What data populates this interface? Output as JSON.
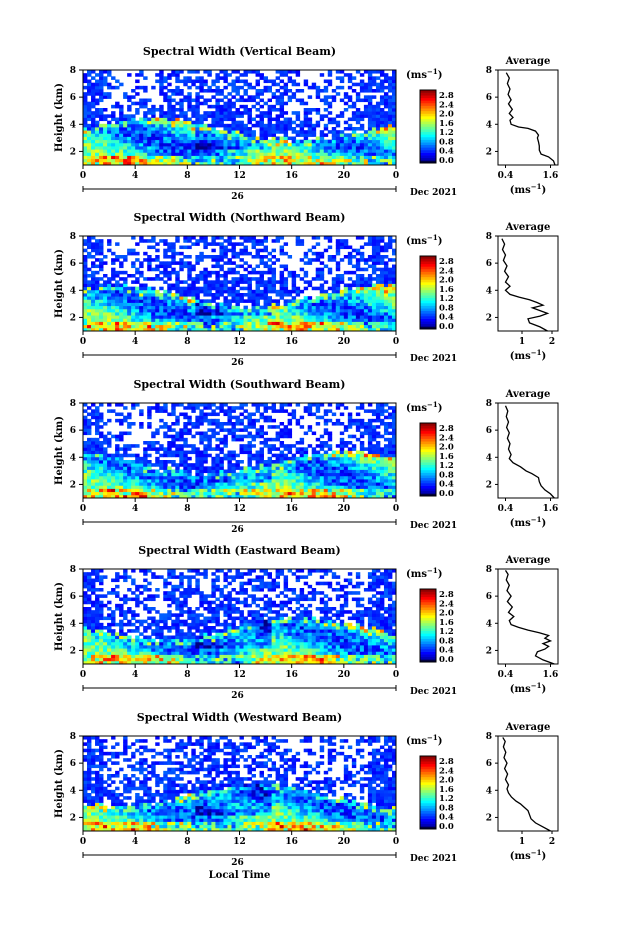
{
  "figure": {
    "xlabel": "Local Time"
  },
  "chart_data": [
    {
      "type": "heatmap",
      "title": "Spectral Width (Vertical Beam)",
      "ylabel": "Height (km)",
      "x_ticks": [
        "0",
        "4",
        "8",
        "12",
        "16",
        "20",
        "0"
      ],
      "xlim": [
        0,
        24
      ],
      "ylim": [
        1,
        8
      ],
      "y_ticks": [
        "2",
        "4",
        "6",
        "8"
      ],
      "date_day": "26",
      "date_month_year": "Dec 2021",
      "colorbar": {
        "label": "(ms",
        "label_exp": "−1",
        "label_end": ")",
        "ticks": [
          "0.0",
          "0.4",
          "0.8",
          "1.2",
          "1.6",
          "2.0",
          "2.4",
          "2.8"
        ]
      },
      "profile": {
        "title": "Average",
        "xlabel": "(ms",
        "xlabel_exp": "−1",
        "xlabel_end": ")",
        "x_ticks": [
          "0.4",
          "1.6"
        ],
        "xlim": [
          0.2,
          1.8
        ],
        "y_ticks": [
          "2",
          "4",
          "6",
          "8"
        ],
        "points": [
          [
            1.72,
            1.0
          ],
          [
            1.68,
            1.3
          ],
          [
            1.55,
            1.6
          ],
          [
            1.35,
            1.8
          ],
          [
            1.3,
            2.1
          ],
          [
            1.3,
            2.4
          ],
          [
            1.28,
            2.7
          ],
          [
            1.25,
            3.0
          ],
          [
            1.28,
            3.2
          ],
          [
            1.2,
            3.5
          ],
          [
            1.0,
            3.7
          ],
          [
            0.75,
            3.8
          ],
          [
            0.55,
            4.0
          ],
          [
            0.52,
            4.3
          ],
          [
            0.6,
            4.5
          ],
          [
            0.5,
            4.8
          ],
          [
            0.58,
            5.1
          ],
          [
            0.48,
            5.5
          ],
          [
            0.55,
            5.8
          ],
          [
            0.47,
            6.2
          ],
          [
            0.52,
            6.6
          ],
          [
            0.45,
            7.0
          ],
          [
            0.5,
            7.4
          ],
          [
            0.42,
            7.8
          ]
        ]
      }
    },
    {
      "type": "heatmap",
      "title": "Spectral Width (Northward Beam)",
      "ylabel": "Height (km)",
      "x_ticks": [
        "0",
        "4",
        "8",
        "12",
        "16",
        "20",
        "0"
      ],
      "xlim": [
        0,
        24
      ],
      "ylim": [
        1,
        8
      ],
      "y_ticks": [
        "2",
        "4",
        "6",
        "8"
      ],
      "date_day": "26",
      "date_month_year": "Dec 2021",
      "colorbar": {
        "label": "(ms",
        "label_exp": "−1",
        "label_end": ")",
        "ticks": [
          "0.0",
          "0.4",
          "0.8",
          "1.2",
          "1.6",
          "2.0",
          "2.4",
          "2.8"
        ]
      },
      "profile": {
        "title": "Average",
        "xlabel": "(ms",
        "xlabel_exp": "−1",
        "xlabel_end": ")",
        "x_ticks": [
          "1",
          "2"
        ],
        "xlim": [
          0.2,
          2.2
        ],
        "y_ticks": [
          "2",
          "4",
          "6",
          "8"
        ],
        "points": [
          [
            1.85,
            1.0
          ],
          [
            1.6,
            1.3
          ],
          [
            1.25,
            1.6
          ],
          [
            1.2,
            1.9
          ],
          [
            1.6,
            2.1
          ],
          [
            1.85,
            2.3
          ],
          [
            1.6,
            2.5
          ],
          [
            1.35,
            2.7
          ],
          [
            1.7,
            2.9
          ],
          [
            1.5,
            3.1
          ],
          [
            1.25,
            3.3
          ],
          [
            0.9,
            3.5
          ],
          [
            0.6,
            3.7
          ],
          [
            0.45,
            4.0
          ],
          [
            0.6,
            4.3
          ],
          [
            0.45,
            4.6
          ],
          [
            0.55,
            5.0
          ],
          [
            0.42,
            5.4
          ],
          [
            0.5,
            5.8
          ],
          [
            0.38,
            6.2
          ],
          [
            0.45,
            6.6
          ],
          [
            0.35,
            7.0
          ],
          [
            0.42,
            7.4
          ],
          [
            0.33,
            7.8
          ]
        ]
      }
    },
    {
      "type": "heatmap",
      "title": "Spectral Width (Southward Beam)",
      "ylabel": "Height (km)",
      "x_ticks": [
        "0",
        "4",
        "8",
        "12",
        "16",
        "20",
        "0"
      ],
      "xlim": [
        0,
        24
      ],
      "ylim": [
        1,
        8
      ],
      "y_ticks": [
        "2",
        "4",
        "6",
        "8"
      ],
      "date_day": "26",
      "date_month_year": "Dec 2021",
      "colorbar": {
        "label": "(ms",
        "label_exp": "−1",
        "label_end": ")",
        "ticks": [
          "0.0",
          "0.4",
          "0.8",
          "1.2",
          "1.6",
          "2.0",
          "2.4",
          "2.8"
        ]
      },
      "profile": {
        "title": "Average",
        "xlabel": "(ms",
        "xlabel_exp": "−1",
        "xlabel_end": ")",
        "x_ticks": [
          "0.4",
          "1.6"
        ],
        "xlim": [
          0.2,
          1.8
        ],
        "y_ticks": [
          "2",
          "4",
          "6",
          "8"
        ],
        "points": [
          [
            1.7,
            1.0
          ],
          [
            1.6,
            1.3
          ],
          [
            1.45,
            1.6
          ],
          [
            1.35,
            1.9
          ],
          [
            1.3,
            2.2
          ],
          [
            1.28,
            2.5
          ],
          [
            1.1,
            2.8
          ],
          [
            0.95,
            3.0
          ],
          [
            0.8,
            3.3
          ],
          [
            0.6,
            3.6
          ],
          [
            0.5,
            3.9
          ],
          [
            0.55,
            4.2
          ],
          [
            0.48,
            4.6
          ],
          [
            0.52,
            5.0
          ],
          [
            0.45,
            5.4
          ],
          [
            0.5,
            5.8
          ],
          [
            0.43,
            6.2
          ],
          [
            0.48,
            6.6
          ],
          [
            0.42,
            7.0
          ],
          [
            0.46,
            7.4
          ],
          [
            0.4,
            7.8
          ]
        ]
      }
    },
    {
      "type": "heatmap",
      "title": "Spectral Width (Eastward Beam)",
      "ylabel": "Height (km)",
      "x_ticks": [
        "0",
        "4",
        "8",
        "12",
        "16",
        "20",
        "0"
      ],
      "xlim": [
        0,
        24
      ],
      "ylim": [
        1,
        8
      ],
      "y_ticks": [
        "2",
        "4",
        "6",
        "8"
      ],
      "date_day": "26",
      "date_month_year": "Dec 2021",
      "colorbar": {
        "label": "(ms",
        "label_exp": "−1",
        "label_end": ")",
        "ticks": [
          "0.0",
          "0.4",
          "0.8",
          "1.2",
          "1.6",
          "2.0",
          "2.4",
          "2.8"
        ]
      },
      "profile": {
        "title": "Average",
        "xlabel": "(ms",
        "xlabel_exp": "−1",
        "xlabel_end": ")",
        "x_ticks": [
          "0.4",
          "1.6"
        ],
        "xlim": [
          0.2,
          1.8
        ],
        "y_ticks": [
          "2",
          "4",
          "6",
          "8"
        ],
        "points": [
          [
            1.7,
            1.0
          ],
          [
            1.4,
            1.3
          ],
          [
            1.2,
            1.6
          ],
          [
            1.25,
            1.9
          ],
          [
            1.45,
            2.1
          ],
          [
            1.55,
            2.3
          ],
          [
            1.4,
            2.5
          ],
          [
            1.6,
            2.7
          ],
          [
            1.45,
            2.9
          ],
          [
            1.55,
            3.1
          ],
          [
            1.3,
            3.3
          ],
          [
            1.0,
            3.5
          ],
          [
            0.75,
            3.7
          ],
          [
            0.55,
            3.9
          ],
          [
            0.5,
            4.2
          ],
          [
            0.62,
            4.5
          ],
          [
            0.48,
            4.8
          ],
          [
            0.58,
            5.2
          ],
          [
            0.45,
            5.6
          ],
          [
            0.55,
            6.0
          ],
          [
            0.44,
            6.4
          ],
          [
            0.5,
            6.8
          ],
          [
            0.42,
            7.2
          ],
          [
            0.47,
            7.6
          ],
          [
            0.4,
            7.9
          ]
        ]
      }
    },
    {
      "type": "heatmap",
      "title": "Spectral Width (Westward Beam)",
      "ylabel": "Height (km)",
      "x_ticks": [
        "0",
        "4",
        "8",
        "12",
        "16",
        "20",
        "0"
      ],
      "xlim": [
        0,
        24
      ],
      "ylim": [
        1,
        8
      ],
      "y_ticks": [
        "2",
        "4",
        "6",
        "8"
      ],
      "date_day": "26",
      "date_month_year": "Dec 2021",
      "colorbar": {
        "label": "(ms",
        "label_exp": "−1",
        "label_end": ")",
        "ticks": [
          "0.0",
          "0.4",
          "0.8",
          "1.2",
          "1.6",
          "2.0",
          "2.4",
          "2.8"
        ]
      },
      "profile": {
        "title": "Average",
        "xlabel": "(ms",
        "xlabel_exp": "−1",
        "xlabel_end": ")",
        "x_ticks": [
          "1",
          "2"
        ],
        "xlim": [
          0.2,
          2.2
        ],
        "y_ticks": [
          "2",
          "4",
          "6",
          "8"
        ],
        "points": [
          [
            1.95,
            1.0
          ],
          [
            1.7,
            1.3
          ],
          [
            1.45,
            1.6
          ],
          [
            1.3,
            1.9
          ],
          [
            1.25,
            2.2
          ],
          [
            1.2,
            2.5
          ],
          [
            1.05,
            2.8
          ],
          [
            0.95,
            3.0
          ],
          [
            0.8,
            3.2
          ],
          [
            0.65,
            3.5
          ],
          [
            0.55,
            3.8
          ],
          [
            0.5,
            4.1
          ],
          [
            0.55,
            4.4
          ],
          [
            0.45,
            4.8
          ],
          [
            0.52,
            5.2
          ],
          [
            0.42,
            5.6
          ],
          [
            0.5,
            6.0
          ],
          [
            0.4,
            6.4
          ],
          [
            0.46,
            6.8
          ],
          [
            0.38,
            7.2
          ],
          [
            0.44,
            7.6
          ],
          [
            0.36,
            7.9
          ]
        ]
      }
    }
  ]
}
